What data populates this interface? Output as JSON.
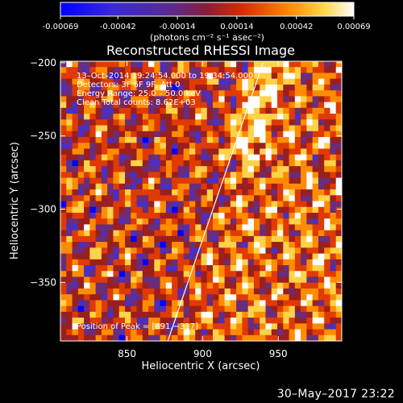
{
  "colorbar": {
    "ticks": [
      "-0.00069",
      "-0.00042",
      "-0.00014",
      "0.00014",
      "0.00042",
      "0.00069"
    ],
    "tick_values": [
      -0.00069,
      -0.00042,
      -0.00014,
      0.00014,
      0.00042,
      0.00069
    ],
    "range": [
      -0.00069,
      0.00069
    ],
    "units_label": "(photons cm⁻² s⁻¹ asec⁻²)",
    "colors": [
      "#0000ff",
      "#4b2fbf",
      "#6a2d7a",
      "#9a1f1f",
      "#e03a00",
      "#ff8c00",
      "#ffd24a",
      "#ffffff"
    ]
  },
  "chart_data": {
    "type": "heatmap",
    "title": "Reconstructed RHESSI Image",
    "xlabel": "Heliocentric X (arcsec)",
    "ylabel": "Heliocentric Y (arcsec)",
    "xlim": [
      806,
      992
    ],
    "ylim": [
      -390,
      -199
    ],
    "x_ticks": [
      850,
      900,
      950
    ],
    "y_ticks": [
      -200,
      -250,
      -300,
      -350
    ],
    "y_tick_labels": [
      "−200",
      "−250",
      "−300",
      "−350"
    ],
    "limb_line": [
      [
        877,
        -390
      ],
      [
        940,
        -200
      ]
    ],
    "annotations": [
      "13–Oct–2014 19:24:54.000 to 19:34:54.000",
      "Detectors: 3F 6F 9F, Att 0",
      "Energy Range: 25.0 – 50.0 keV",
      "Clean    Total counts: 8.62E+03"
    ],
    "peak_label": "Position of Peak = [891,−317]"
  },
  "footer": {
    "timestamp": "30–May–2017 23:22"
  }
}
